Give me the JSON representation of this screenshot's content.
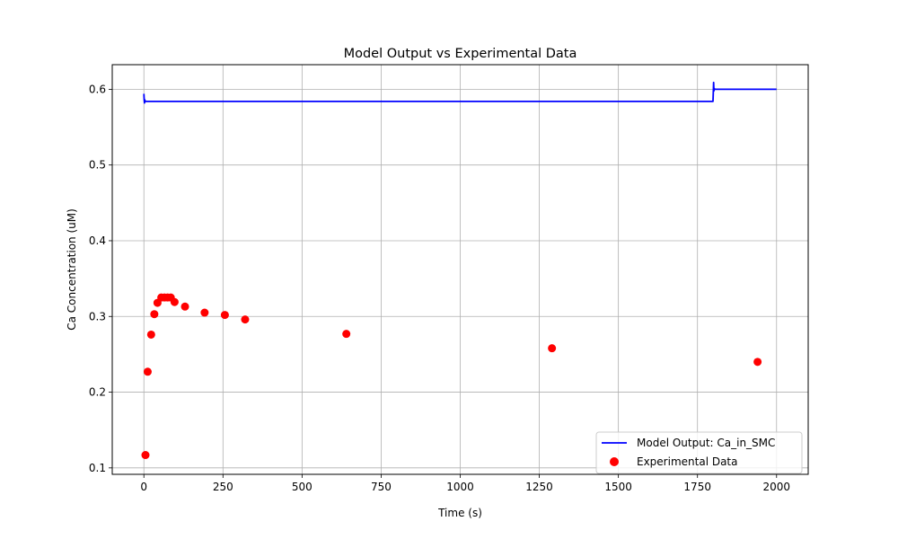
{
  "chart_data": {
    "type": "line",
    "title": "Model Output vs Experimental Data",
    "xlabel": "Time (s)",
    "ylabel": "Ca Concentration (uM)",
    "xlim": [
      -100,
      2100
    ],
    "ylim": [
      0.0915,
      0.6325
    ],
    "xticks": [
      0,
      250,
      500,
      750,
      1000,
      1250,
      1500,
      1750,
      2000
    ],
    "yticks": [
      0.1,
      0.2,
      0.3,
      0.4,
      0.5,
      0.6
    ],
    "grid": true,
    "legend_position": "lower right",
    "series": [
      {
        "name": "Model Output: Ca_in_SMC",
        "kind": "line",
        "color": "#0000ff",
        "x": [
          0,
          1,
          2,
          3,
          4,
          6,
          10,
          500,
          1000,
          1500,
          1799,
          1800,
          1801,
          1802,
          1803,
          1805,
          1810,
          2000
        ],
        "y": [
          0.594,
          0.586,
          0.582,
          0.586,
          0.584,
          0.584,
          0.584,
          0.584,
          0.584,
          0.584,
          0.584,
          0.596,
          0.609,
          0.598,
          0.601,
          0.6,
          0.6,
          0.6
        ]
      },
      {
        "name": "Experimental Data",
        "kind": "scatter",
        "color": "#ff0000",
        "x": [
          5,
          12,
          23,
          33,
          43,
          55,
          65,
          75,
          85,
          97,
          130,
          192,
          256,
          320,
          640,
          1290,
          1940
        ],
        "y": [
          0.117,
          0.227,
          0.276,
          0.303,
          0.318,
          0.325,
          0.325,
          0.325,
          0.325,
          0.319,
          0.313,
          0.305,
          0.302,
          0.296,
          0.277,
          0.258,
          0.24
        ]
      }
    ]
  }
}
